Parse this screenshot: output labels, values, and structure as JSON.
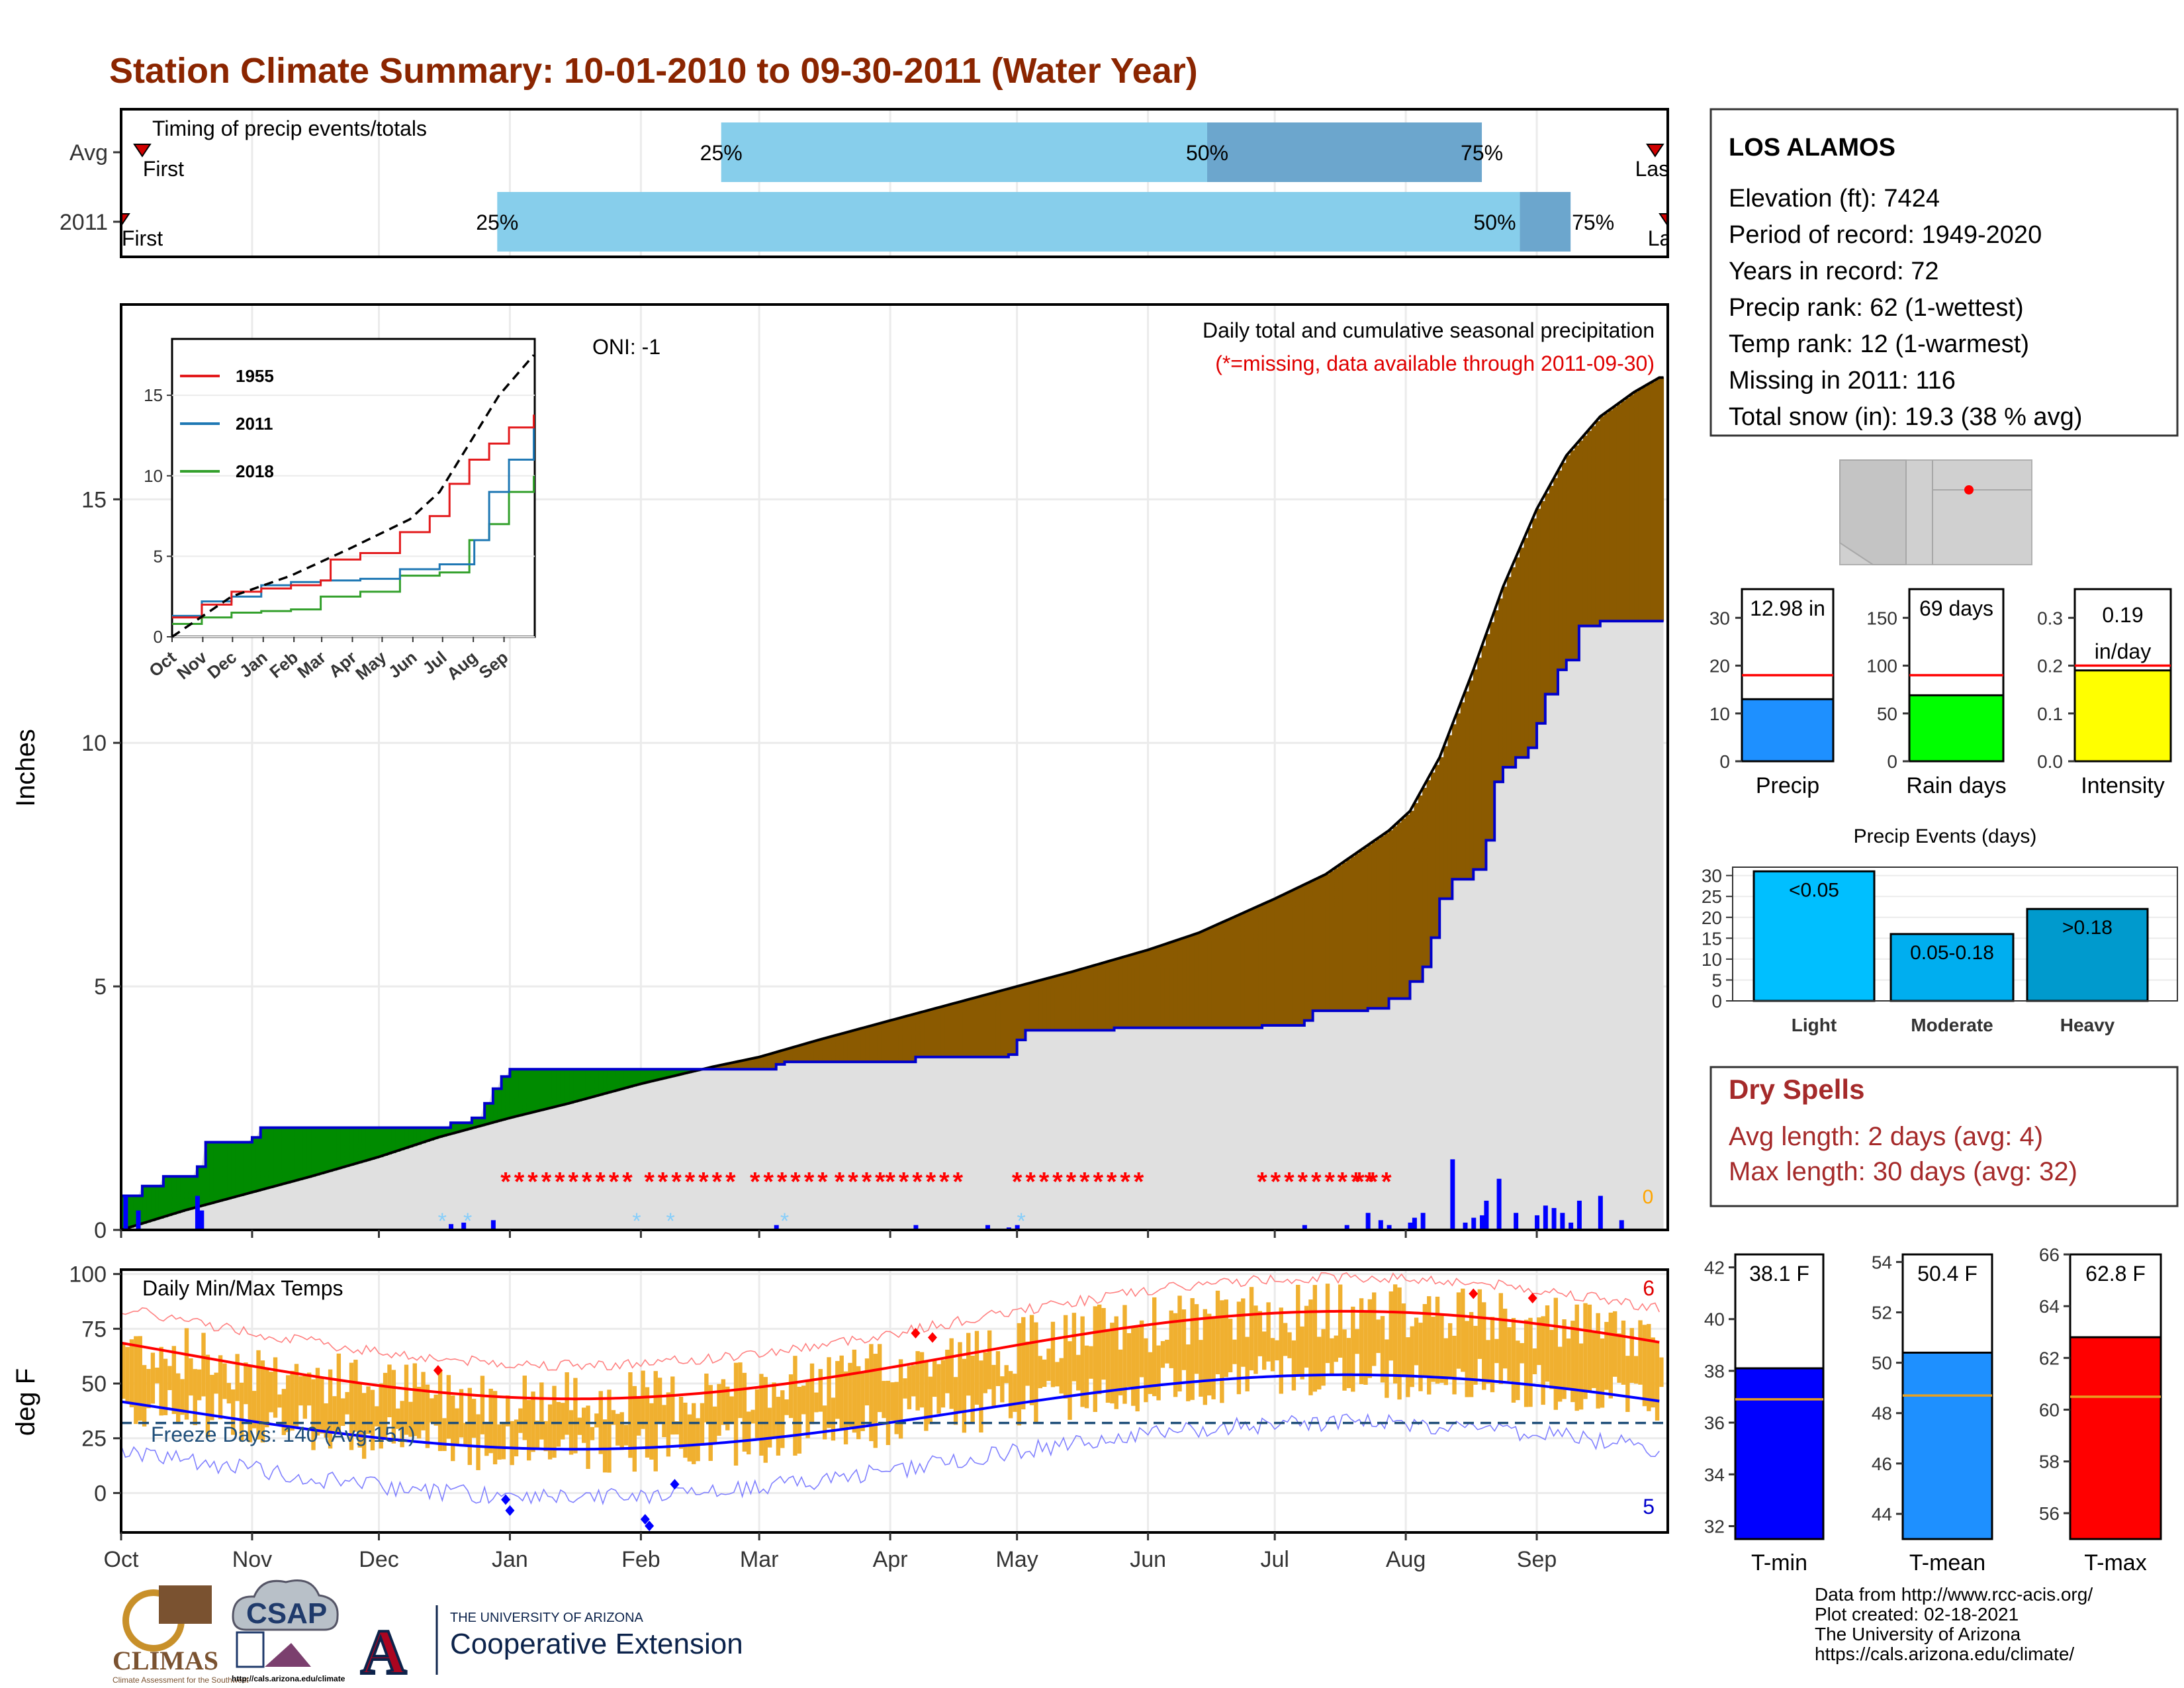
{
  "title": "Station Climate Summary: 10-01-2010 to 09-30-2011 (Water Year)",
  "colors": {
    "title": "#8B2500",
    "light_blue": "#87CEEB",
    "mid_blue": "#6CA6CD",
    "brown": "#8B5A00",
    "green": "#008B00",
    "panel_bg": "#E0E0E0",
    "precip_bar": "#0000FF",
    "snow": "#87CEFA",
    "missing": "#FF0000",
    "temp_bar": "#F0B030",
    "tmax_line": "#FF0000",
    "tmin_line": "#0000FF",
    "dry_spell": "#A52A2A"
  },
  "timing_panel": {
    "label": "Timing of precip events/totals",
    "rows": [
      {
        "name": "Avg",
        "first_label": "First",
        "last_label": "Last",
        "first_day": 5,
        "last_day": 363,
        "p25_label": "25%",
        "p50_label": "50%",
        "p75_label": "75%",
        "p25": 142,
        "p50": 257,
        "p75": 322
      },
      {
        "name": "2011",
        "first_label": "First",
        "last_label": "Last",
        "first_day": 0,
        "last_day": 366,
        "p25_label": "25%",
        "p50_label": "50%",
        "p75_label": "75%",
        "p25": 89,
        "p50": 331,
        "p75": 343
      }
    ]
  },
  "precip_panel": {
    "ylabel": "Inches",
    "yticks": [
      0,
      5,
      10,
      15
    ],
    "ylim": [
      0,
      19
    ],
    "top_label": "Daily total and cumulative seasonal precipitation",
    "missing_label": "(*=missing, data available through 2011-09-30)",
    "oni": "ONI: -1",
    "snow_count": "0",
    "avg_cumulative": [
      [
        0,
        0
      ],
      [
        15,
        0.4
      ],
      [
        30,
        0.75
      ],
      [
        45,
        1.1
      ],
      [
        61,
        1.5
      ],
      [
        75,
        1.9
      ],
      [
        92,
        2.3
      ],
      [
        106,
        2.6
      ],
      [
        123,
        3.0
      ],
      [
        140,
        3.35
      ],
      [
        151,
        3.55
      ],
      [
        165,
        3.9
      ],
      [
        182,
        4.3
      ],
      [
        197,
        4.65
      ],
      [
        212,
        5.0
      ],
      [
        225,
        5.3
      ],
      [
        243,
        5.75
      ],
      [
        255,
        6.1
      ],
      [
        273,
        6.8
      ],
      [
        285,
        7.3
      ],
      [
        300,
        8.2
      ],
      [
        305,
        8.6
      ],
      [
        312,
        9.7
      ],
      [
        320,
        11.5
      ],
      [
        327,
        13.2
      ],
      [
        335,
        14.8
      ],
      [
        342,
        15.9
      ],
      [
        350,
        16.7
      ],
      [
        358,
        17.2
      ],
      [
        364,
        17.5
      ]
    ],
    "cum_2011": [
      [
        0,
        0.7
      ],
      [
        5,
        0.9
      ],
      [
        10,
        1.1
      ],
      [
        18,
        1.3
      ],
      [
        20,
        1.8
      ],
      [
        31,
        1.9
      ],
      [
        33,
        2.1
      ],
      [
        58,
        2.1
      ],
      [
        75,
        2.1
      ],
      [
        78,
        2.2
      ],
      [
        83,
        2.3
      ],
      [
        86,
        2.6
      ],
      [
        88,
        2.9
      ],
      [
        90,
        3.15
      ],
      [
        92,
        3.3
      ],
      [
        155,
        3.4
      ],
      [
        157,
        3.45
      ],
      [
        188,
        3.55
      ],
      [
        210,
        3.6
      ],
      [
        212,
        3.9
      ],
      [
        214,
        4.1
      ],
      [
        235,
        4.15
      ],
      [
        270,
        4.2
      ],
      [
        280,
        4.3
      ],
      [
        282,
        4.5
      ],
      [
        295,
        4.55
      ],
      [
        300,
        4.75
      ],
      [
        305,
        5.1
      ],
      [
        308,
        5.4
      ],
      [
        310,
        6.0
      ],
      [
        312,
        6.8
      ],
      [
        315,
        7.2
      ],
      [
        320,
        7.4
      ],
      [
        323,
        8.0
      ],
      [
        325,
        9.2
      ],
      [
        327,
        9.5
      ],
      [
        330,
        9.7
      ],
      [
        333,
        9.9
      ],
      [
        335,
        10.4
      ],
      [
        337,
        11.0
      ],
      [
        340,
        11.5
      ],
      [
        342,
        11.7
      ],
      [
        345,
        12.4
      ],
      [
        350,
        12.5
      ],
      [
        355,
        12.5
      ],
      [
        364,
        12.5
      ]
    ],
    "daily_bars": [
      [
        1,
        0.7
      ],
      [
        4,
        0.4
      ],
      [
        18,
        0.7
      ],
      [
        19,
        0.4
      ],
      [
        78,
        0.12
      ],
      [
        81,
        0.15
      ],
      [
        88,
        0.2
      ],
      [
        155,
        0.1
      ],
      [
        188,
        0.1
      ],
      [
        205,
        0.1
      ],
      [
        210,
        0.05
      ],
      [
        212,
        0.1
      ],
      [
        280,
        0.1
      ],
      [
        290,
        0.1
      ],
      [
        295,
        0.35
      ],
      [
        298,
        0.2
      ],
      [
        300,
        0.1
      ],
      [
        305,
        0.15
      ],
      [
        306,
        0.25
      ],
      [
        308,
        0.35
      ],
      [
        315,
        1.45
      ],
      [
        318,
        0.15
      ],
      [
        320,
        0.25
      ],
      [
        322,
        0.3
      ],
      [
        323,
        0.6
      ],
      [
        326,
        1.05
      ],
      [
        330,
        0.35
      ],
      [
        335,
        0.3
      ],
      [
        337,
        0.5
      ],
      [
        339,
        0.45
      ],
      [
        341,
        0.35
      ],
      [
        343,
        0.15
      ],
      [
        345,
        0.6
      ],
      [
        350,
        0.7
      ],
      [
        355,
        0.2
      ]
    ],
    "snow_days": [
      76,
      82,
      122,
      130,
      157,
      213
    ],
    "missing_ranges": [
      [
        91,
        120
      ],
      [
        125,
        147
      ],
      [
        150,
        166
      ],
      [
        170,
        180
      ],
      [
        182,
        200
      ],
      [
        212,
        243
      ],
      [
        270,
        287
      ],
      [
        289,
        297
      ],
      [
        293,
        300
      ]
    ]
  },
  "inset": {
    "legend": [
      {
        "name": "1955",
        "color": "#E31A1C"
      },
      {
        "name": "2011",
        "color": "#1F78B4"
      },
      {
        "name": "2018",
        "color": "#33A02C"
      }
    ],
    "yticks": [
      0,
      5,
      10,
      15
    ],
    "months": [
      "Oct",
      "Nov",
      "Dec",
      "Jan",
      "Feb",
      "Mar",
      "Apr",
      "May",
      "Jun",
      "Jul",
      "Aug",
      "Sep"
    ],
    "series_1955": [
      [
        0,
        1.2
      ],
      [
        30,
        2.0
      ],
      [
        60,
        2.8
      ],
      [
        90,
        3.0
      ],
      [
        120,
        3.2
      ],
      [
        150,
        3.5
      ],
      [
        160,
        4.8
      ],
      [
        190,
        5.2
      ],
      [
        230,
        6.5
      ],
      [
        260,
        7.5
      ],
      [
        280,
        9.5
      ],
      [
        300,
        11.0
      ],
      [
        320,
        12.0
      ],
      [
        340,
        13.0
      ],
      [
        365,
        13.8
      ]
    ],
    "series_2011": [
      [
        0,
        1.3
      ],
      [
        30,
        2.2
      ],
      [
        60,
        2.5
      ],
      [
        90,
        3.2
      ],
      [
        120,
        3.4
      ],
      [
        150,
        3.5
      ],
      [
        190,
        3.6
      ],
      [
        230,
        4.2
      ],
      [
        270,
        4.5
      ],
      [
        305,
        6.0
      ],
      [
        320,
        9.0
      ],
      [
        340,
        11.0
      ],
      [
        365,
        13.0
      ]
    ],
    "series_2018": [
      [
        0,
        0.8
      ],
      [
        30,
        1.2
      ],
      [
        60,
        1.5
      ],
      [
        90,
        1.6
      ],
      [
        120,
        1.7
      ],
      [
        150,
        2.5
      ],
      [
        190,
        2.8
      ],
      [
        230,
        3.8
      ],
      [
        270,
        4.0
      ],
      [
        300,
        6.0
      ],
      [
        320,
        7.0
      ],
      [
        340,
        9.0
      ],
      [
        365,
        10.0
      ]
    ],
    "series_avg": [
      [
        0,
        0
      ],
      [
        60,
        2.5
      ],
      [
        120,
        3.8
      ],
      [
        180,
        5.5
      ],
      [
        240,
        7.3
      ],
      [
        270,
        9.0
      ],
      [
        300,
        12.0
      ],
      [
        330,
        15.0
      ],
      [
        365,
        17.5
      ]
    ]
  },
  "temp_panel": {
    "ylabel": "deg F",
    "yticks": [
      0,
      25,
      50,
      75,
      100
    ],
    "ylim": [
      -18,
      102
    ],
    "label": "Daily Min/Max Temps",
    "freeze_label": "Freeze Days: 140 (Avg:151)",
    "tmax_count": "6",
    "tmin_count": "5",
    "freeze_line": 32,
    "months": [
      "Oct",
      "Nov",
      "Dec",
      "Jan",
      "Feb",
      "Mar",
      "Apr",
      "May",
      "Jun",
      "Jul",
      "Aug",
      "Sep"
    ]
  },
  "station": {
    "name": "LOS ALAMOS",
    "lines": [
      "Elevation (ft): 7424",
      "Period of record: 1949-2020",
      "Years in record: 72",
      "Precip rank: 62 (1-wettest)",
      "Temp rank: 12 (1-warmest)",
      "Missing in 2011: 116",
      "Total snow (in): 19.3 (38 % avg)"
    ]
  },
  "summary_bars": [
    {
      "label": "Precip",
      "value_label": "12.98 in",
      "value": 12.98,
      "avg": 18,
      "ymax": 36,
      "yticks": [
        0,
        10,
        20,
        30
      ],
      "color": "#1E90FF"
    },
    {
      "label": "Rain days",
      "value_label": "69 days",
      "value": 69,
      "avg": 90,
      "ymax": 180,
      "yticks": [
        0,
        50,
        100,
        150
      ],
      "color": "#00FF00"
    },
    {
      "label": "Intensity",
      "value_label": "0.19 in/day",
      "value": 0.19,
      "avg": 0.2,
      "ymax": 0.36,
      "yticks": [
        0.0,
        0.1,
        0.2,
        0.3
      ],
      "color": "#FFFF00"
    }
  ],
  "precip_events": {
    "title": "Precip Events (days)",
    "yticks": [
      0,
      5,
      10,
      15,
      20,
      25,
      30
    ],
    "bars": [
      {
        "category": "Light",
        "label": "<0.05",
        "value": 31,
        "color": "#00BFFF"
      },
      {
        "category": "Moderate",
        "label": "0.05-0.18",
        "value": 16,
        "color": "#00AEEF"
      },
      {
        "category": "Heavy",
        "label": ">0.18",
        "value": 22,
        "color": "#009ACD"
      }
    ]
  },
  "dry_spells": {
    "title": "Dry Spells",
    "avg_line": "Avg length: 2 days (avg: 4)",
    "max_line": "Max length: 30 days (avg: 32)"
  },
  "temp_bars": [
    {
      "label": "T-min",
      "value_label": "38.1 F",
      "value": 38.1,
      "avg": 36.9,
      "ymin": 31.5,
      "ymax": 42.5,
      "yticks": [
        32,
        34,
        36,
        38,
        40,
        42
      ],
      "color": "#0000FF"
    },
    {
      "label": "T-mean",
      "value_label": "50.4 F",
      "value": 50.4,
      "avg": 48.7,
      "ymin": 43,
      "ymax": 54.3,
      "yticks": [
        44,
        46,
        48,
        50,
        52,
        54
      ],
      "color": "#1E90FF"
    },
    {
      "label": "T-max",
      "value_label": "62.8 F",
      "value": 62.8,
      "avg": 60.5,
      "ymin": 55,
      "ymax": 66,
      "yticks": [
        56,
        58,
        60,
        62,
        64,
        66
      ],
      "color": "#FF0000"
    }
  ],
  "footer": {
    "lines": [
      "Data from http://www.rcc-acis.org/",
      "Plot created: 02-18-2021",
      "The University of Arizona",
      "https://cals.arizona.edu/climate/"
    ],
    "logo_climas": "CLIMAS",
    "logo_climas_sub": "Climate Assessment for the Southwest",
    "logo_csap": "CSAP",
    "logo_csap_url": "http://cals.arizona.edu/climate",
    "logo_ua_top": "THE UNIVERSITY OF ARIZONA",
    "logo_ua_bottom": "Cooperative Extension"
  }
}
